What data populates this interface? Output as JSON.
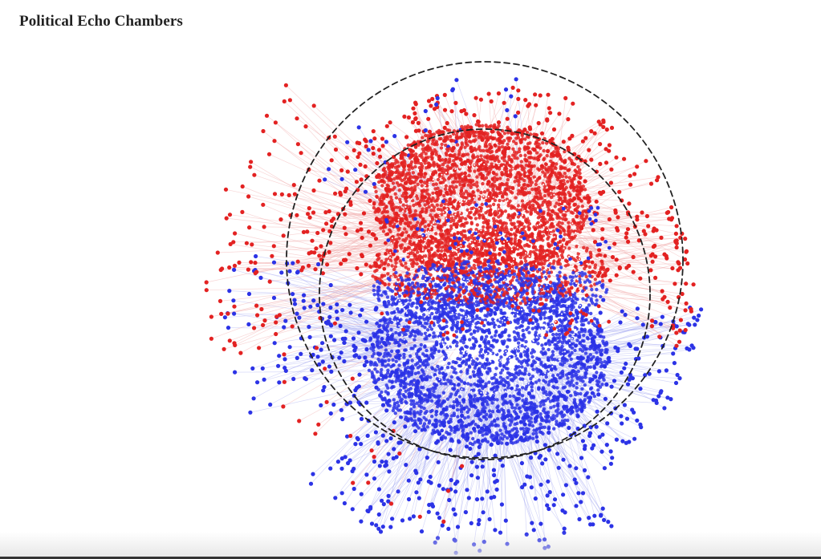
{
  "header": {
    "title": "Political Echo Chambers"
  },
  "network": {
    "communities": [
      {
        "id": "red-community",
        "color": "#e32222"
      },
      {
        "id": "blue-community",
        "color": "#2c33e6"
      }
    ],
    "edge_colors": {
      "red-community": "#f0a3a3",
      "blue-community": "#a7aaf2"
    },
    "guide_ring_color_outer": "#222222",
    "guide_ring_color_inner": "#ffffff"
  }
}
